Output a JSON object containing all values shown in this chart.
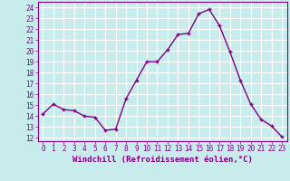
{
  "x": [
    0,
    1,
    2,
    3,
    4,
    5,
    6,
    7,
    8,
    9,
    10,
    11,
    12,
    13,
    14,
    15,
    16,
    17,
    18,
    19,
    20,
    21,
    22,
    23
  ],
  "y": [
    14.2,
    15.1,
    14.6,
    14.5,
    14.0,
    13.9,
    12.7,
    12.8,
    15.6,
    17.3,
    19.0,
    19.0,
    20.1,
    21.5,
    21.6,
    23.4,
    23.8,
    22.3,
    19.9,
    17.3,
    15.1,
    13.7,
    13.1,
    12.1
  ],
  "line_color": "#800080",
  "marker": "+",
  "bg_color": "#c8ecec",
  "grid_color": "#b0d8d8",
  "xlabel": "Windchill (Refroidissement éolien,°C)",
  "ylabel_ticks": [
    12,
    13,
    14,
    15,
    16,
    17,
    18,
    19,
    20,
    21,
    22,
    23,
    24
  ],
  "ylim": [
    11.7,
    24.5
  ],
  "xlim": [
    -0.5,
    23.5
  ],
  "tick_color": "#800080",
  "label_color": "#800080",
  "tick_fontsize": 5.5,
  "xlabel_fontsize": 6.5
}
